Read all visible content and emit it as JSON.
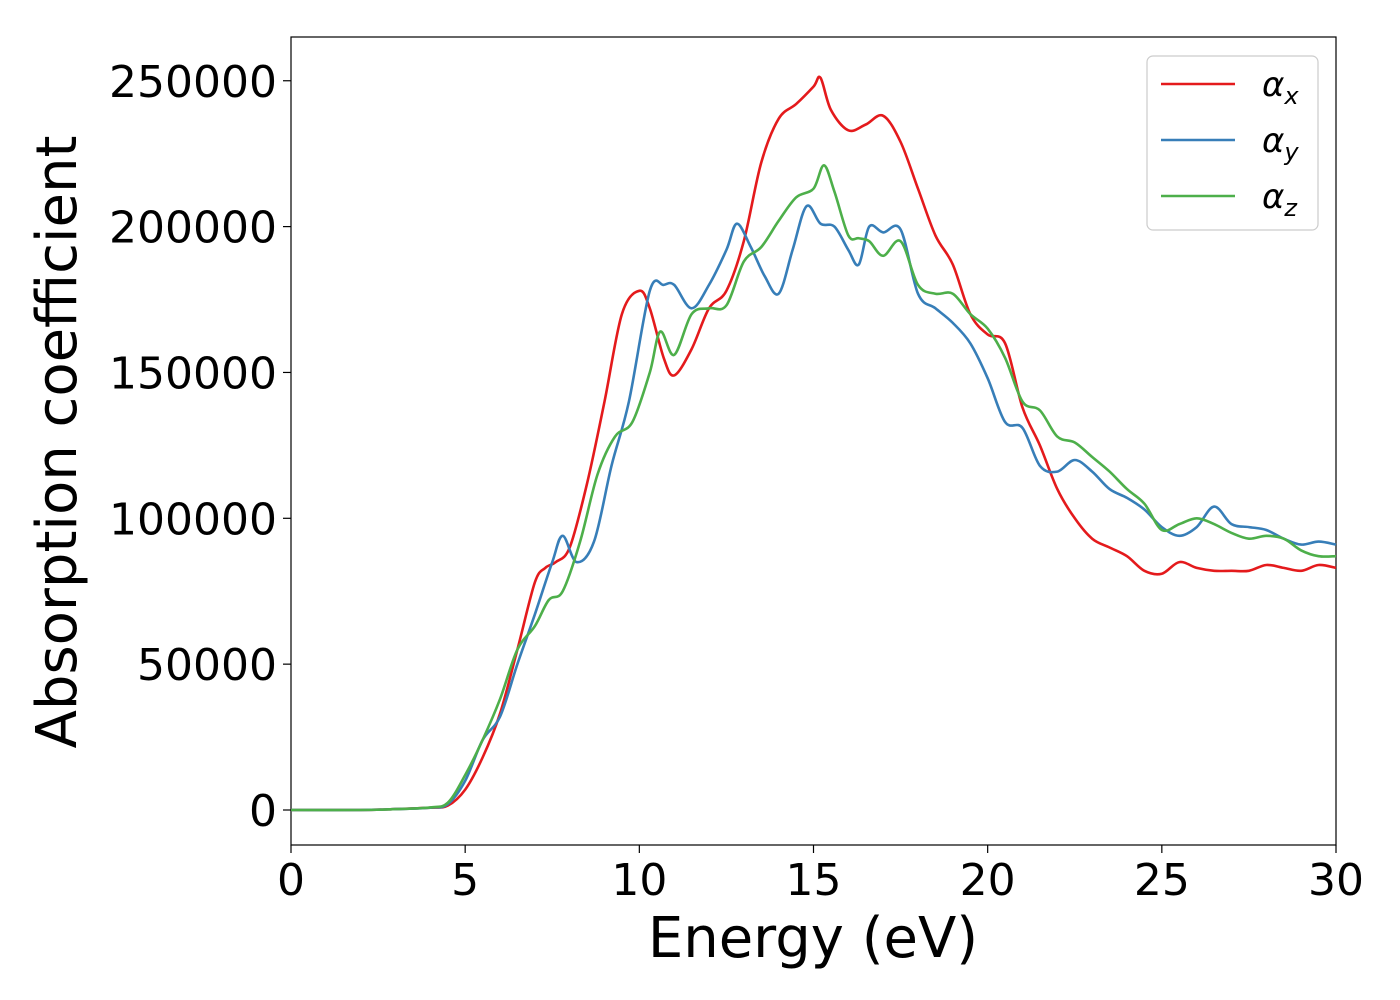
{
  "chart_data": {
    "type": "line",
    "xlabel": "Energy (eV)",
    "ylabel": "Absorption coefficient",
    "xlim": [
      0,
      30
    ],
    "ylim": [
      -12000,
      265000
    ],
    "xticks": [
      "0",
      "5",
      "10",
      "15",
      "20",
      "25",
      "30"
    ],
    "yticks": [
      "0",
      "50000",
      "100000",
      "150000",
      "200000",
      "250000"
    ],
    "legend_position": "top-right",
    "grid": false,
    "series": [
      {
        "name": "αx",
        "label_base": "α",
        "label_sub": "x",
        "color": "#e41a1c",
        "x": [
          0,
          2,
          3,
          4,
          4.5,
          5,
          5.5,
          6,
          6.5,
          7,
          7.3,
          7.6,
          8,
          8.5,
          9,
          9.5,
          10,
          10.3,
          10.7,
          11,
          11.5,
          12,
          12.5,
          13,
          13.5,
          14,
          14.5,
          15,
          15.2,
          15.5,
          16,
          16.5,
          17,
          17.5,
          18,
          18.5,
          19,
          19.5,
          20,
          20.5,
          21,
          21.5,
          22,
          22.5,
          23,
          23.5,
          24,
          24.5,
          25,
          25.5,
          26,
          26.5,
          27,
          27.5,
          28,
          28.5,
          29,
          29.5,
          30
        ],
        "y": [
          0,
          0,
          300,
          800,
          1500,
          7000,
          18000,
          33000,
          55000,
          78000,
          83000,
          85000,
          90000,
          112000,
          140000,
          170000,
          178000,
          172000,
          155000,
          149000,
          158000,
          172000,
          178000,
          195000,
          222000,
          237000,
          242000,
          248000,
          251000,
          240000,
          233000,
          235000,
          238000,
          229000,
          213000,
          197000,
          187000,
          170000,
          163000,
          160000,
          138000,
          125000,
          110000,
          100000,
          93000,
          90000,
          87000,
          82000,
          81000,
          85000,
          83000,
          82000,
          82000,
          82000,
          84000,
          83000,
          82000,
          84000,
          83000
        ]
      },
      {
        "name": "αy",
        "label_base": "α",
        "label_sub": "y",
        "color": "#377eb8",
        "x": [
          0,
          2,
          3,
          4,
          4.5,
          5,
          5.5,
          6,
          6.5,
          7,
          7.5,
          7.8,
          8.2,
          8.7,
          9.2,
          9.7,
          10.3,
          10.7,
          11,
          11.5,
          12,
          12.5,
          12.8,
          13.2,
          13.6,
          14,
          14.4,
          14.8,
          15.2,
          15.6,
          16,
          16.3,
          16.6,
          17,
          17.5,
          18,
          18.5,
          19,
          19.5,
          20,
          20.5,
          21,
          21.5,
          22,
          22.5,
          23,
          23.5,
          24,
          24.5,
          25,
          25.5,
          26,
          26.5,
          27,
          27.5,
          28,
          28.5,
          29,
          29.5,
          30
        ],
        "y": [
          0,
          0,
          300,
          800,
          2000,
          10000,
          24000,
          32000,
          50000,
          67000,
          85000,
          94000,
          85000,
          92000,
          118000,
          140000,
          178000,
          180000,
          180000,
          172000,
          180000,
          192000,
          201000,
          193000,
          183000,
          177000,
          192000,
          207000,
          201000,
          200000,
          192000,
          187000,
          200000,
          198000,
          199000,
          177000,
          172000,
          167000,
          160000,
          148000,
          133000,
          131000,
          118000,
          116000,
          120000,
          116000,
          110000,
          107000,
          103000,
          97000,
          94000,
          97000,
          104000,
          98000,
          97000,
          96000,
          93000,
          91000,
          92000,
          91000
        ]
      },
      {
        "name": "αz",
        "label_base": "α",
        "label_sub": "z",
        "color": "#4daf4a",
        "x": [
          0,
          2,
          3,
          4,
          4.5,
          5,
          5.5,
          6,
          6.5,
          7,
          7.4,
          7.8,
          8.3,
          8.8,
          9.3,
          9.8,
          10.3,
          10.6,
          11,
          11.5,
          12,
          12.5,
          13,
          13.5,
          14,
          14.5,
          15,
          15.3,
          15.6,
          16,
          16.3,
          16.6,
          17,
          17.5,
          18,
          18.5,
          19,
          19.5,
          20,
          20.5,
          21,
          21.5,
          22,
          22.5,
          23,
          23.5,
          24,
          24.5,
          25,
          25.5,
          26,
          26.5,
          27,
          27.5,
          28,
          28.5,
          29,
          29.5,
          30
        ],
        "y": [
          0,
          0,
          300,
          900,
          2500,
          12000,
          24000,
          38000,
          55000,
          63000,
          72000,
          75000,
          92000,
          115000,
          128000,
          133000,
          150000,
          164000,
          156000,
          170000,
          172000,
          173000,
          188000,
          193000,
          202000,
          210000,
          213000,
          221000,
          212000,
          197000,
          196000,
          195000,
          190000,
          195000,
          180000,
          177000,
          177000,
          170000,
          165000,
          155000,
          140000,
          137000,
          128000,
          126000,
          121000,
          116000,
          110000,
          105000,
          96000,
          98000,
          100000,
          98000,
          95000,
          93000,
          94000,
          93000,
          89000,
          87000,
          87000
        ]
      }
    ]
  }
}
